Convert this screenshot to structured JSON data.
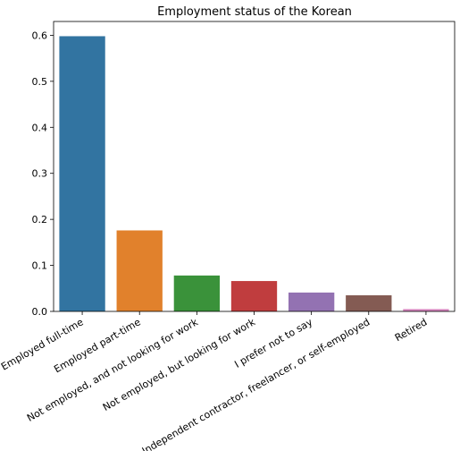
{
  "chart_data": {
    "type": "bar",
    "title": "Employment status of the Korean",
    "xlabel": "",
    "ylabel": "",
    "ylim": [
      0,
      0.63
    ],
    "yticks": [
      0.0,
      0.1,
      0.2,
      0.3,
      0.4,
      0.5,
      0.6
    ],
    "ytick_labels": [
      "0.0",
      "0.1",
      "0.2",
      "0.3",
      "0.4",
      "0.5",
      "0.6"
    ],
    "categories": [
      "Employed full-time",
      "Employed part-time",
      "Not employed, and not looking for work",
      "Not employed, but looking for work",
      "I prefer not to say",
      "Independent contractor, freelancer, or self-employed",
      "Retired"
    ],
    "values": [
      0.598,
      0.176,
      0.078,
      0.066,
      0.041,
      0.035,
      0.005
    ],
    "colors": [
      "#3274a1",
      "#e1812c",
      "#3a923a",
      "#c03d3e",
      "#9372b2",
      "#845b53",
      "#d684bd"
    ],
    "grid": false,
    "legend": "none"
  }
}
